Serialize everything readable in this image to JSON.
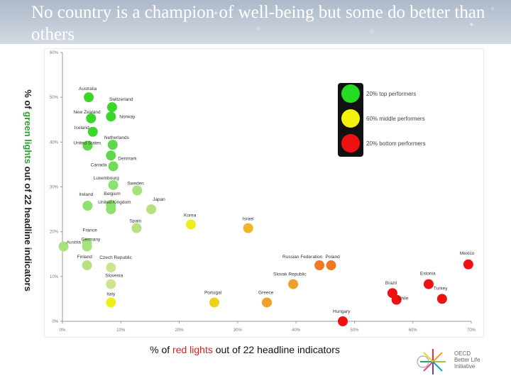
{
  "header": {
    "title": "No country is a champion of well-being but some do better than others"
  },
  "axis_titles": {
    "y_prefix": "% of ",
    "y_highlight": "green lights",
    "y_suffix": " out of 22 headline indicators",
    "x_prefix": "% of ",
    "x_highlight": "red lights",
    "x_suffix": " out of 22 headline indicators"
  },
  "logo": {
    "line1": "OECD",
    "line2": "Better Life",
    "line3": "Initiative"
  },
  "chart_data": {
    "type": "scatter",
    "xlabel": "% of red lights out of 22 headline indicators",
    "ylabel": "% of green lights out of 22 headline indicators",
    "xlim": [
      0,
      70
    ],
    "ylim": [
      0,
      60
    ],
    "x_ticks": [
      "0%",
      "10%",
      "20%",
      "30%",
      "40%",
      "50%",
      "60%",
      "70%"
    ],
    "y_ticks": [
      "0%",
      "10%",
      "20%",
      "30%",
      "40%",
      "50%",
      "60%"
    ],
    "legend": [
      {
        "label": "20% top performers",
        "color": "#22dd22"
      },
      {
        "label": "60% middle performers",
        "color": "#f2f20a"
      },
      {
        "label": "20% bottom performers",
        "color": "#ee1111"
      }
    ],
    "points": [
      {
        "label": "Australia",
        "x": 4.5,
        "y": 50.0,
        "color": "#3ad62a"
      },
      {
        "label": "Switzerland",
        "x": 8.5,
        "y": 47.8,
        "color": "#3ad62a"
      },
      {
        "label": "New Zealand",
        "x": 4.9,
        "y": 45.3,
        "color": "#3ad62a"
      },
      {
        "label": "Norway",
        "x": 8.3,
        "y": 45.7,
        "color": "#3ad62a"
      },
      {
        "label": "Iceland",
        "x": 5.2,
        "y": 42.3,
        "color": "#3ad62a"
      },
      {
        "label": "United States",
        "x": 4.3,
        "y": 39.2,
        "color": "#5ed84a"
      },
      {
        "label": "Netherlands",
        "x": 8.6,
        "y": 39.4,
        "color": "#5ed84a"
      },
      {
        "label": "Denmark",
        "x": 8.3,
        "y": 37.0,
        "color": "#5ed84a"
      },
      {
        "label": "Canada",
        "x": 8.7,
        "y": 34.6,
        "color": "#6edc5a"
      },
      {
        "label": "Luxembourg",
        "x": 8.7,
        "y": 30.4,
        "color": "#8ce06c"
      },
      {
        "label": "Sweden",
        "x": 12.8,
        "y": 29.2,
        "color": "#a8e27e"
      },
      {
        "label": "Ireland",
        "x": 4.3,
        "y": 25.8,
        "color": "#8ce06c"
      },
      {
        "label": "Belgium",
        "x": 8.3,
        "y": 26.0,
        "color": "#8ce06c"
      },
      {
        "label": "United Kingdom",
        "x": 8.3,
        "y": 25.0,
        "color": "#8ce06c"
      },
      {
        "label": "Japan",
        "x": 15.2,
        "y": 25.0,
        "color": "#b8e07e"
      },
      {
        "label": "Spain",
        "x": 12.7,
        "y": 20.8,
        "color": "#b8e07e"
      },
      {
        "label": "Korea",
        "x": 22.0,
        "y": 21.6,
        "color": "#eeee1a"
      },
      {
        "label": "Israel",
        "x": 31.8,
        "y": 20.8,
        "color": "#f2b424"
      },
      {
        "label": "France",
        "x": 4.2,
        "y": 17.5,
        "color": "#a8e27e"
      },
      {
        "label": "Germany",
        "x": 4.2,
        "y": 16.7,
        "color": "#a8e27e"
      },
      {
        "label": "Austria",
        "x": 0.2,
        "y": 16.7,
        "color": "#a8e27e"
      },
      {
        "label": "Finland",
        "x": 4.2,
        "y": 12.5,
        "color": "#b8e07e"
      },
      {
        "label": "Czech Republic",
        "x": 8.3,
        "y": 12.0,
        "color": "#cce58e"
      },
      {
        "label": "Slovenia",
        "x": 8.3,
        "y": 8.3,
        "color": "#cce58e"
      },
      {
        "label": "Italy",
        "x": 8.3,
        "y": 4.2,
        "color": "#eeee1a"
      },
      {
        "label": "Portugal",
        "x": 26.0,
        "y": 4.2,
        "color": "#eed21a"
      },
      {
        "label": "Greece",
        "x": 35.0,
        "y": 4.2,
        "color": "#f0a028"
      },
      {
        "label": "Russian Federation",
        "x": 44.0,
        "y": 12.5,
        "color": "#f07a24"
      },
      {
        "label": "Poland",
        "x": 46.0,
        "y": 12.5,
        "color": "#f07a24"
      },
      {
        "label": "Slovak Republic",
        "x": 39.5,
        "y": 8.3,
        "color": "#f0a028"
      },
      {
        "label": "Hungary",
        "x": 48.0,
        "y": 0.0,
        "color": "#ee1111"
      },
      {
        "label": "Brazil",
        "x": 56.5,
        "y": 6.3,
        "color": "#ee1111"
      },
      {
        "label": "Chile",
        "x": 57.2,
        "y": 4.8,
        "color": "#ee1111"
      },
      {
        "label": "Estonia",
        "x": 62.7,
        "y": 8.3,
        "color": "#ee1111"
      },
      {
        "label": "Turkey",
        "x": 65.0,
        "y": 5.0,
        "color": "#ee1111"
      },
      {
        "label": "Mexico",
        "x": 69.5,
        "y": 12.7,
        "color": "#ee1111"
      }
    ]
  }
}
